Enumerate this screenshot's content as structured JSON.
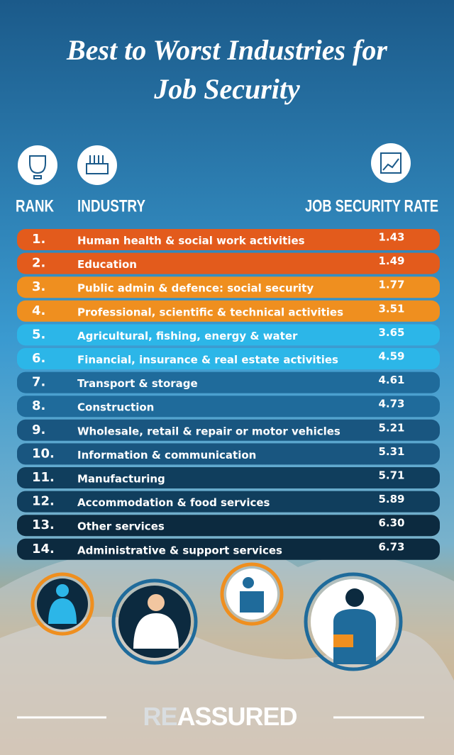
{
  "header": {
    "title_line1": "Best to Worst Industries for",
    "title_line2": "Job Security"
  },
  "table": {
    "columns": [
      "RANK",
      "INDUSTRY",
      "JOB SECURITY RATE"
    ],
    "rows": [
      [
        "1.",
        "Human health & social work activities",
        "1.43"
      ],
      [
        "2.",
        "Education",
        "1.49"
      ],
      [
        "3.",
        "Public admin & defence: social security",
        "1.77"
      ],
      [
        "4.",
        "Professional, scientific & technical activities",
        "3.51"
      ],
      [
        "5.",
        "Agricultural, fishing, energy & water",
        "3.65"
      ],
      [
        "6.",
        "Financial, insurance & real estate activities",
        "4.59"
      ],
      [
        "7.",
        "Transport & storage",
        "4.61"
      ],
      [
        "8.",
        "Construction",
        "4.73"
      ],
      [
        "9.",
        "Wholesale, retail & repair or motor vehicles",
        "5.21"
      ],
      [
        "10.",
        "Information & communication",
        "5.31"
      ],
      [
        "11.",
        "Manufacturing",
        "5.71"
      ],
      [
        "12.",
        "Accommodation & food services",
        "5.89"
      ],
      [
        "13.",
        "Other services",
        "6.30"
      ],
      [
        "14.",
        "Administrative & support services",
        "6.73"
      ]
    ]
  },
  "footer": {
    "logo_part1": "RE",
    "logo_part2": "ASSURED"
  }
}
